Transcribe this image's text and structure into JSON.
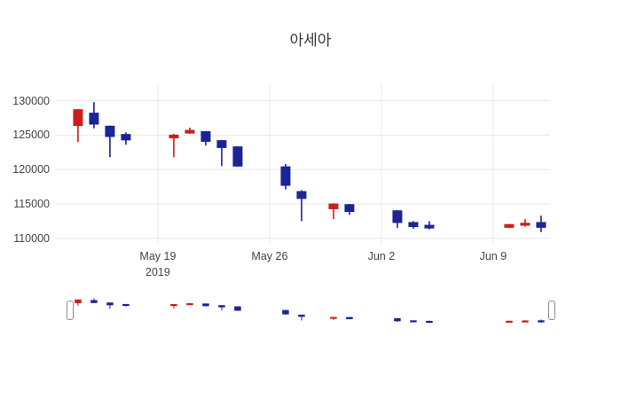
{
  "chart_data": {
    "type": "candlestick",
    "title": "아세아",
    "legend": "none",
    "grid": true,
    "grid_color": "#e8e8e8",
    "background": "#ffffff",
    "increasing_color": "#cc1f1d",
    "decreasing_color": "#1c2496",
    "tick_color": "#444444",
    "y_ticks": [
      110000,
      115000,
      120000,
      125000,
      130000
    ],
    "y_range": [
      109200,
      132400
    ],
    "slider_y_range": [
      108000,
      133000
    ],
    "x_range_days": [
      -1.44,
      29.56
    ],
    "x_ticks": [
      {
        "date": "2019-05-19",
        "label": "May 19",
        "sublabel": "2019"
      },
      {
        "date": "2019-05-26",
        "label": "May 26",
        "sublabel": ""
      },
      {
        "date": "2019-06-02",
        "label": "Jun 2",
        "sublabel": ""
      },
      {
        "date": "2019-06-09",
        "label": "Jun 9",
        "sublabel": ""
      }
    ],
    "candles": [
      {
        "date": "2019-05-14",
        "open": 126400,
        "high": 128800,
        "low": 124000,
        "close": 128700
      },
      {
        "date": "2019-05-15",
        "open": 128200,
        "high": 129800,
        "low": 126000,
        "close": 126600
      },
      {
        "date": "2019-05-16",
        "open": 126300,
        "high": 126400,
        "low": 121800,
        "close": 124800
      },
      {
        "date": "2019-05-17",
        "open": 125100,
        "high": 125400,
        "low": 123600,
        "close": 124300
      },
      {
        "date": "2019-05-20",
        "open": 124600,
        "high": 125200,
        "low": 121800,
        "close": 125000
      },
      {
        "date": "2019-05-21",
        "open": 125300,
        "high": 126100,
        "low": 125200,
        "close": 125700
      },
      {
        "date": "2019-05-22",
        "open": 125500,
        "high": 125600,
        "low": 123500,
        "close": 124100
      },
      {
        "date": "2019-05-23",
        "open": 124200,
        "high": 124300,
        "low": 120500,
        "close": 123200
      },
      {
        "date": "2019-05-24",
        "open": 123300,
        "high": 123400,
        "low": 120400,
        "close": 120500
      },
      {
        "date": "2019-05-27",
        "open": 120400,
        "high": 120800,
        "low": 117100,
        "close": 117700
      },
      {
        "date": "2019-05-28",
        "open": 116800,
        "high": 117000,
        "low": 112500,
        "close": 115800
      },
      {
        "date": "2019-05-30",
        "open": 114300,
        "high": 115100,
        "low": 112800,
        "close": 115000
      },
      {
        "date": "2019-05-31",
        "open": 114900,
        "high": 115000,
        "low": 113400,
        "close": 113900
      },
      {
        "date": "2019-06-03",
        "open": 114000,
        "high": 114100,
        "low": 111500,
        "close": 112300
      },
      {
        "date": "2019-06-04",
        "open": 112300,
        "high": 112500,
        "low": 111400,
        "close": 111700
      },
      {
        "date": "2019-06-05",
        "open": 111900,
        "high": 112500,
        "low": 111300,
        "close": 111500
      },
      {
        "date": "2019-06-10",
        "open": 111600,
        "high": 112100,
        "low": 111500,
        "close": 112000
      },
      {
        "date": "2019-06-11",
        "open": 111900,
        "high": 112800,
        "low": 111700,
        "close": 112200
      },
      {
        "date": "2019-06-12",
        "open": 112300,
        "high": 113300,
        "low": 110900,
        "close": 111600
      }
    ]
  }
}
